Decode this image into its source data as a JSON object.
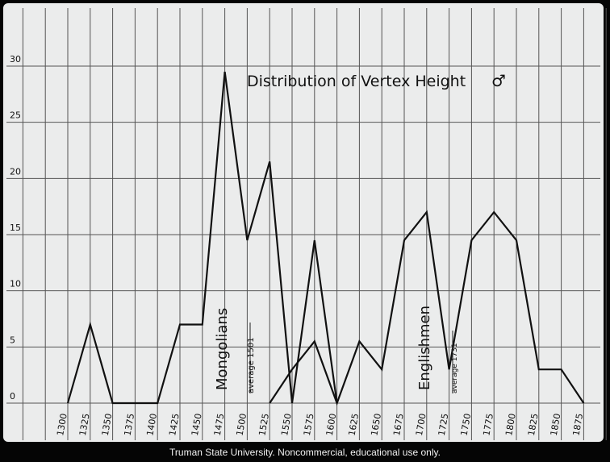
{
  "chart_data": {
    "type": "line",
    "title": "Distribution of Vertex Height",
    "title_symbol": "♂",
    "xlabel": "",
    "ylabel": "",
    "x_ticks": [
      "1300",
      "1325",
      "1350",
      "1375",
      "1400",
      "1425",
      "1450",
      "1475",
      "1500",
      "1525",
      "1550",
      "1575",
      "1600",
      "1625",
      "1650",
      "1675",
      "1700",
      "1725",
      "1750",
      "1775",
      "1800",
      "1825",
      "1850",
      "1875"
    ],
    "y_ticks": [
      "0",
      "5",
      "10",
      "15",
      "20",
      "25",
      "30"
    ],
    "ylim": [
      0,
      30
    ],
    "grid": true,
    "series": [
      {
        "name": "Mongolians",
        "x": [
          1300,
          1325,
          1350,
          1375,
          1400,
          1425,
          1450,
          1475,
          1500,
          1525,
          1550,
          1575,
          1600
        ],
        "y": [
          0,
          7,
          0,
          0,
          0,
          7,
          7,
          29.5,
          14.5,
          21.5,
          0,
          14.5,
          0
        ]
      },
      {
        "name": "Englishmen",
        "x": [
          1525,
          1550,
          1575,
          1600,
          1625,
          1650,
          1675,
          1700,
          1725,
          1750,
          1775,
          1800,
          1825,
          1850,
          1875
        ],
        "y": [
          0,
          3,
          5.5,
          0,
          5.5,
          3,
          14.5,
          17,
          3,
          14.5,
          17,
          14.5,
          3,
          3,
          0
        ]
      }
    ],
    "annotations": {
      "mongolians_label": "Mongolians",
      "mongolians_average": "average 1501",
      "englishmen_label": "Englishmen",
      "englishmen_average": "average 1731"
    }
  },
  "caption": "Truman State University.  Noncommercial, educational use only."
}
